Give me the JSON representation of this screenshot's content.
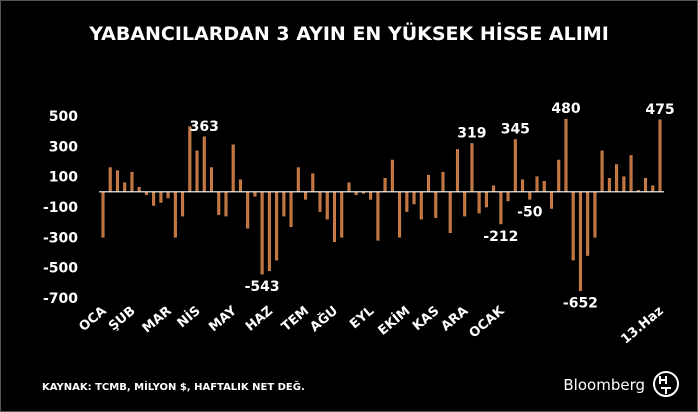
{
  "chart_data": {
    "type": "bar",
    "title": "YABANCILARDAN 3 AYIN EN YÜKSEK HİSSE ALIMI",
    "source": "KAYNAK: TCMB, MİLYON $, HAFTALIK NET DEĞ.",
    "brand": "Bloomberg",
    "color": "#c4723c",
    "ylim": [
      -700,
      500
    ],
    "yticks": [
      500,
      300,
      100,
      -100,
      -300,
      -500,
      -700
    ],
    "categories": [
      "OCA",
      null,
      null,
      null,
      "ŞUB",
      null,
      null,
      null,
      null,
      "MAR",
      null,
      null,
      null,
      "NİS",
      null,
      null,
      null,
      null,
      "MAY",
      null,
      null,
      null,
      null,
      "HAZ",
      null,
      null,
      null,
      null,
      "TEM",
      null,
      null,
      null,
      "AĞU",
      null,
      null,
      null,
      null,
      "EYL",
      null,
      null,
      null,
      null,
      "EKİM",
      null,
      null,
      null,
      "KAS",
      null,
      null,
      null,
      "ARA",
      null,
      null,
      null,
      null,
      "OCAK",
      null,
      null,
      null,
      null,
      null,
      null,
      null,
      null,
      null,
      null,
      null,
      null,
      null,
      null,
      null,
      null,
      null,
      null,
      null,
      null,
      null,
      "13.Haz"
    ],
    "values": [
      -300,
      160,
      140,
      60,
      130,
      30,
      -20,
      -90,
      -70,
      -40,
      -300,
      -160,
      430,
      270,
      363,
      160,
      -150,
      -160,
      310,
      80,
      -240,
      -30,
      -543,
      -520,
      -450,
      -160,
      -230,
      160,
      -50,
      120,
      -130,
      -180,
      -330,
      -300,
      60,
      -20,
      -10,
      -50,
      -320,
      90,
      210,
      -300,
      -130,
      -80,
      -180,
      110,
      -170,
      130,
      -270,
      280,
      -160,
      319,
      -140,
      -100,
      40,
      -212,
      -60,
      345,
      80,
      -50,
      100,
      70,
      -110,
      210,
      480,
      -450,
      -652,
      -420,
      -300,
      270,
      90,
      180,
      100,
      240,
      10,
      90,
      40,
      475
    ],
    "value_labels": [
      null,
      null,
      null,
      null,
      null,
      null,
      null,
      null,
      null,
      null,
      null,
      null,
      null,
      null,
      "363",
      null,
      null,
      null,
      null,
      null,
      null,
      null,
      "-543",
      null,
      null,
      null,
      null,
      null,
      null,
      null,
      null,
      null,
      null,
      null,
      null,
      null,
      null,
      null,
      null,
      null,
      null,
      null,
      null,
      null,
      null,
      null,
      null,
      null,
      null,
      null,
      null,
      "319",
      null,
      null,
      null,
      "-212",
      null,
      "345",
      null,
      "-50",
      null,
      null,
      null,
      null,
      "480",
      null,
      "-652",
      null,
      null,
      null,
      null,
      null,
      null,
      null,
      null,
      null,
      null,
      "475"
    ]
  }
}
